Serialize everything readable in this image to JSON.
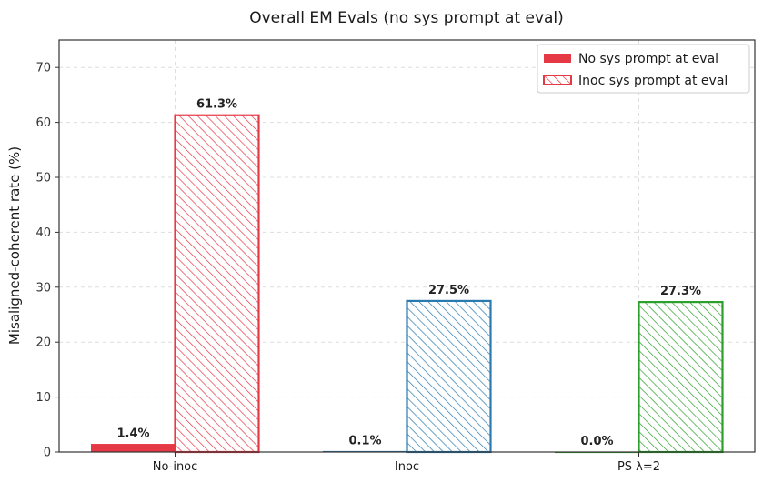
{
  "chart_data": {
    "type": "bar",
    "title": "Overall EM Evals (no sys prompt at eval)",
    "xlabel": "",
    "ylabel": "Misaligned-coherent rate (%)",
    "ylim": [
      0,
      75
    ],
    "yticks": [
      0,
      10,
      20,
      30,
      40,
      50,
      60,
      70
    ],
    "grid": true,
    "legend_position": "top-right",
    "categories": [
      "No-inoc",
      "Inoc",
      "PS λ=2"
    ],
    "category_colors": [
      "#e63946",
      "#2a7ab0",
      "#2ca02c"
    ],
    "series": [
      {
        "name": "No sys prompt at eval",
        "values": [
          1.4,
          0.1,
          0.0
        ],
        "labels": [
          "1.4%",
          "0.1%",
          "0.0%"
        ],
        "style": "solid"
      },
      {
        "name": "Inoc sys prompt at eval",
        "values": [
          61.3,
          27.5,
          27.3
        ],
        "labels": [
          "61.3%",
          "27.5%",
          "27.3%"
        ],
        "style": "hatched"
      }
    ]
  }
}
